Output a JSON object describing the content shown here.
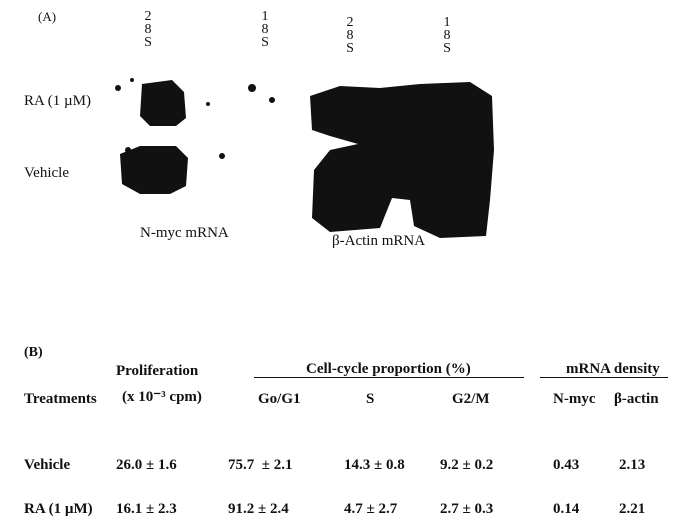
{
  "panel_a": {
    "label": "(A)",
    "markers": [
      [
        "2",
        "8",
        "S"
      ],
      [
        "1",
        "8",
        "S"
      ],
      [
        "2",
        "8",
        "S"
      ],
      [
        "1",
        "8",
        "S"
      ]
    ],
    "row_labels": [
      "RA (1 µM)",
      "Vehicle"
    ],
    "lane_labels": [
      "N-myc mRNA",
      "β-Actin mRNA"
    ]
  },
  "panel_b": {
    "label": "(B)",
    "group_headers": [
      "Proliferation",
      "Cell-cycle proportion (%)",
      "mRNA density"
    ],
    "columns": [
      "Treatments",
      "(x 10⁻³ cpm)",
      "Go/G1",
      "S",
      "G2/M",
      "N-myc",
      "β-actin"
    ],
    "rows": [
      [
        "Vehicle",
        "26.0 ± 1.6",
        "75.7  ± 2.1",
        "14.3 ± 0.8",
        "9.2 ± 0.2",
        "0.43",
        "2.13"
      ],
      [
        "RA (1 µM)",
        "16.1 ± 2.3",
        "91.2 ± 2.4",
        "4.7 ± 2.7",
        "2.7 ± 0.3",
        "0.14",
        "2.21"
      ]
    ]
  }
}
